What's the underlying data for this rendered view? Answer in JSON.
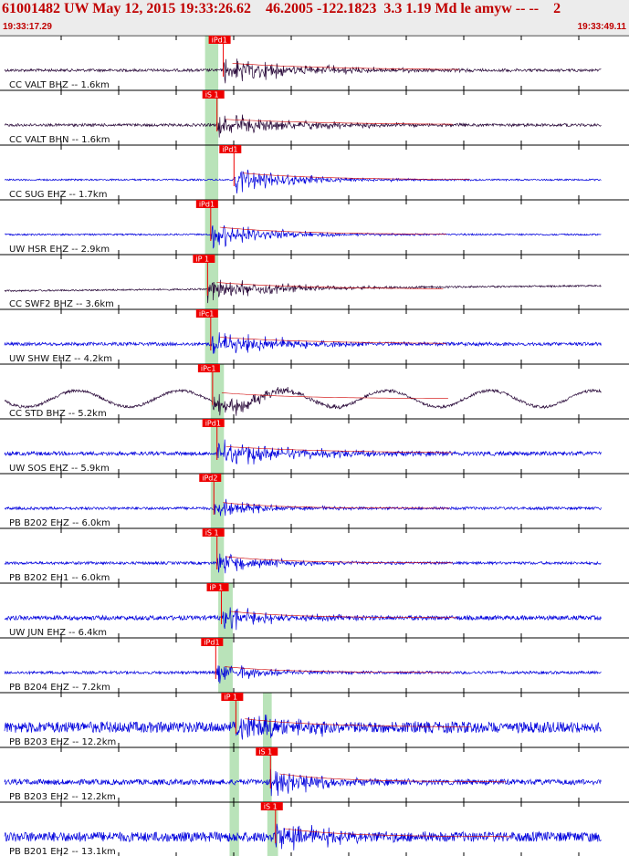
{
  "header": {
    "title": "61001482 UW May 12, 2015 19:33:26.62    46.2005 -122.1823  3.3 1.19 Md le amyw -- --    2",
    "start_time": "19:33:17.29",
    "end_time": "19:33:49.11"
  },
  "colors": {
    "header_text": "#c00000",
    "trace_blue": "#0000dd",
    "trace_dark": "#2a0a3a",
    "pick_box": "#ee0000",
    "window_band": "#b9e3b9",
    "separator": "#000000"
  },
  "traces": [
    {
      "label": "CC VALT BHZ -- 1.6km",
      "pick": "iPd1",
      "color": "dark",
      "onset": 0.355,
      "amp": 0.55,
      "noise": 0.05,
      "decay": 0.14,
      "drift": 0.0,
      "swell": 0,
      "bands": [
        0.326,
        0.347
      ]
    },
    {
      "label": "CC VALT BHN -- 1.6km",
      "pick": "iS 1",
      "color": "dark",
      "onset": 0.345,
      "amp": 0.45,
      "noise": 0.05,
      "decay": 0.15,
      "drift": 0.0,
      "swell": 0,
      "bands": [
        0.326,
        0.347
      ]
    },
    {
      "label": "CC SUG EHZ -- 1.7km",
      "pick": "iPd1",
      "color": "blue",
      "onset": 0.372,
      "amp": 0.55,
      "noise": 0.03,
      "decay": 0.1,
      "drift": 0.0,
      "swell": 0,
      "bands": [
        0.326,
        0.347
      ]
    },
    {
      "label": "UW HSR EHZ -- 2.9km",
      "pick": "iPd1",
      "color": "blue",
      "onset": 0.335,
      "amp": 0.6,
      "noise": 0.03,
      "decay": 0.1,
      "drift": 0.0,
      "swell": 0,
      "bands": [
        0.326,
        0.347
      ]
    },
    {
      "label": "CC SWF2 BHZ -- 3.6km",
      "pick": "iP 1",
      "color": "dark",
      "onset": 0.33,
      "amp": 0.55,
      "noise": 0.03,
      "decay": 0.12,
      "drift": 0.2,
      "swell": 0,
      "bands": [
        0.326,
        0.347
      ]
    },
    {
      "label": "UW SHW EHZ -- 4.2km",
      "pick": "iPc1",
      "color": "blue",
      "onset": 0.335,
      "amp": 0.55,
      "noise": 0.06,
      "decay": 0.13,
      "drift": 0.0,
      "swell": 0,
      "bands": [
        0.326,
        0.347
      ]
    },
    {
      "label": "CC STD BHZ -- 5.2km",
      "pick": "iPc1",
      "color": "dark",
      "onset": 0.338,
      "amp": 0.5,
      "noise": 0.05,
      "decay": 0.1,
      "drift": 0.0,
      "swell": 0.3,
      "bands": [
        0.335,
        0.356
      ]
    },
    {
      "label": "UW SOS EHZ -- 5.9km",
      "pick": "iPd1",
      "color": "blue",
      "onset": 0.345,
      "amp": 0.55,
      "noise": 0.07,
      "decay": 0.15,
      "drift": 0.0,
      "swell": 0,
      "bands": [
        0.335,
        0.356
      ]
    },
    {
      "label": "PB B202 EHZ -- 6.0km",
      "pick": "iPd2",
      "color": "blue",
      "onset": 0.34,
      "amp": 0.5,
      "noise": 0.05,
      "decay": 0.07,
      "drift": 0.0,
      "swell": 0,
      "bands": [
        0.335,
        0.356
      ]
    },
    {
      "label": "PB B202 EH1 -- 6.0km",
      "pick": "iS 1",
      "color": "blue",
      "onset": 0.345,
      "amp": 0.55,
      "noise": 0.05,
      "decay": 0.08,
      "drift": 0.0,
      "swell": 0,
      "bands": [
        0.335,
        0.356
      ]
    },
    {
      "label": "UW JUN EHZ -- 6.4km",
      "pick": "iP 1",
      "color": "blue",
      "onset": 0.352,
      "amp": 0.55,
      "noise": 0.08,
      "decay": 0.08,
      "drift": 0.0,
      "swell": 0,
      "bands": [
        0.347,
        0.37
      ]
    },
    {
      "label": "PB B204 EHZ -- 7.2km",
      "pick": "iPd1",
      "color": "blue",
      "onset": 0.343,
      "amp": 0.5,
      "noise": 0.05,
      "decay": 0.08,
      "drift": 0.0,
      "swell": 0,
      "bands": [
        0.347,
        0.37
      ]
    },
    {
      "label": "PB B203 EHZ -- 12.2km",
      "pick": "iP 1",
      "color": "blue",
      "onset": 0.375,
      "amp": 0.7,
      "noise": 0.2,
      "decay": 0.1,
      "drift": 0.0,
      "swell": 0,
      "bands": [
        0.365,
        0.38,
        0.418,
        0.432
      ]
    },
    {
      "label": "PB B203 EH2 -- 12.2km",
      "pick": "iS 1",
      "color": "blue",
      "onset": 0.43,
      "amp": 0.7,
      "noise": 0.1,
      "decay": 0.08,
      "drift": 0.0,
      "swell": 0,
      "bands": [
        0.365,
        0.38,
        0.418,
        0.432
      ]
    },
    {
      "label": "PB B201 EH2 -- 13.1km",
      "pick": "iS 1",
      "color": "blue",
      "onset": 0.438,
      "amp": 0.7,
      "noise": 0.18,
      "decay": 0.08,
      "drift": 0.0,
      "swell": 0,
      "bands": [
        0.365,
        0.38,
        0.425,
        0.442
      ]
    }
  ]
}
